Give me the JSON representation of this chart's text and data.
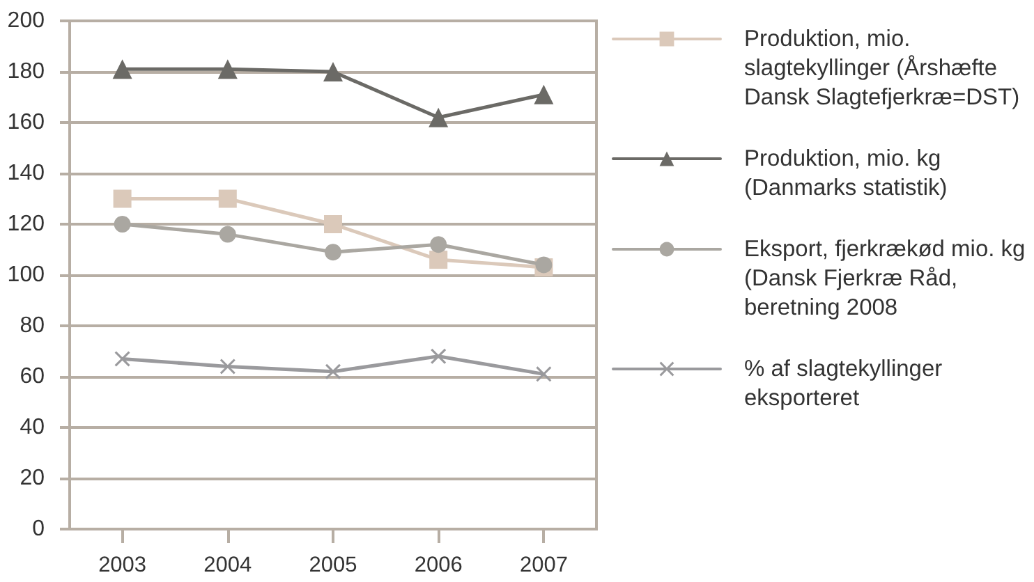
{
  "chart_data": {
    "type": "line",
    "categories": [
      "2003",
      "2004",
      "2005",
      "2006",
      "2007"
    ],
    "series": [
      {
        "name": "Produktion, mio. slagtekyllinger (Årshæfte Dansk Slagtefjerkræ=DST)",
        "color": "#dbc9ba",
        "marker": "square",
        "values": [
          130,
          130,
          120,
          106,
          103
        ]
      },
      {
        "name": "Produktion, mio. kg (Danmarks statistik)",
        "color": "#6b6a66",
        "marker": "triangle",
        "values": [
          181,
          181,
          180,
          162,
          171
        ]
      },
      {
        "name": "Eksport, fjerkrækød mio. kg (Dansk Fjerkræ Råd, beretning 2008",
        "color": "#aaa7a1",
        "marker": "circle",
        "values": [
          120,
          116,
          109,
          112,
          104
        ]
      },
      {
        "name": "% af slagtekyllinger eksporteret",
        "color": "#9a9a9d",
        "marker": "cross",
        "values": [
          67,
          64,
          62,
          68,
          61
        ]
      }
    ],
    "ylim": [
      0,
      200
    ],
    "yticks": [
      0,
      20,
      40,
      60,
      80,
      100,
      120,
      140,
      160,
      180,
      200
    ],
    "grid": "y",
    "legend": "right"
  }
}
